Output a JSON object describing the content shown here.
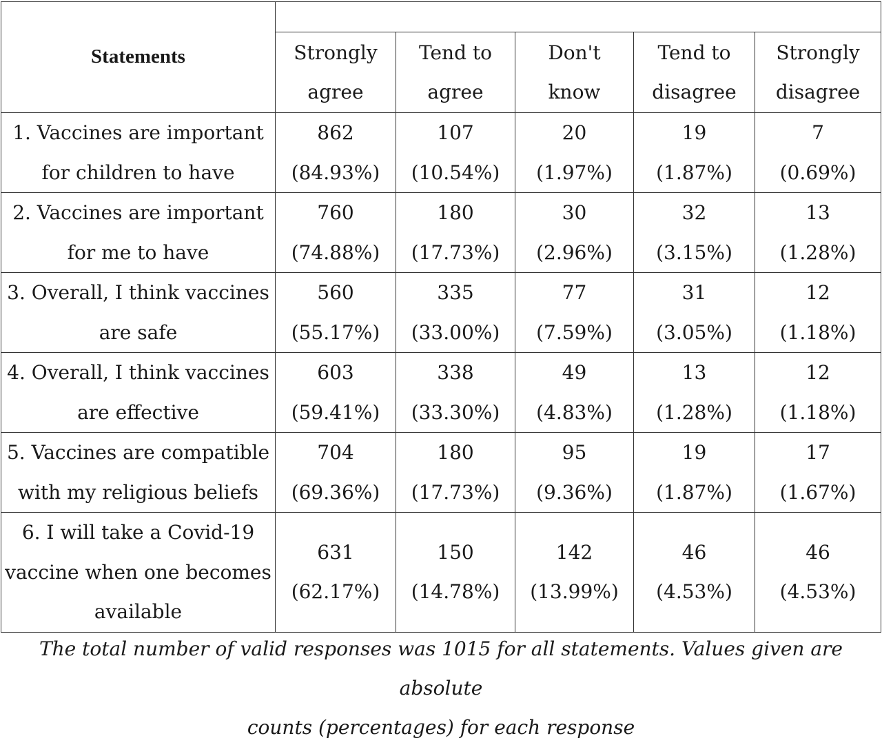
{
  "table": {
    "header": {
      "statements_label": "Statements",
      "columns": [
        {
          "line1": "Strongly",
          "line2": "agree"
        },
        {
          "line1": "Tend to",
          "line2": "agree"
        },
        {
          "line1": "Don't",
          "line2": "know"
        },
        {
          "line1": "Tend to",
          "line2": "disagree"
        },
        {
          "line1": "Strongly",
          "line2": "disagree"
        }
      ]
    },
    "rows": [
      {
        "statement": [
          "1. Vaccines are important",
          "for children to have"
        ],
        "cells": [
          {
            "count": "862",
            "pct": "(84.93%)"
          },
          {
            "count": "107",
            "pct": "(10.54%)"
          },
          {
            "count": "20",
            "pct": "(1.97%)"
          },
          {
            "count": "19",
            "pct": "(1.87%)"
          },
          {
            "count": "7",
            "pct": "(0.69%)"
          }
        ]
      },
      {
        "statement": [
          "2. Vaccines are important",
          "for me to have"
        ],
        "cells": [
          {
            "count": "760",
            "pct": "(74.88%)"
          },
          {
            "count": "180",
            "pct": "(17.73%)"
          },
          {
            "count": "30",
            "pct": "(2.96%)"
          },
          {
            "count": "32",
            "pct": "(3.15%)"
          },
          {
            "count": "13",
            "pct": "(1.28%)"
          }
        ]
      },
      {
        "statement": [
          "3. Overall, I think vaccines",
          "are safe"
        ],
        "cells": [
          {
            "count": "560",
            "pct": "(55.17%)"
          },
          {
            "count": "335",
            "pct": "(33.00%)"
          },
          {
            "count": "77",
            "pct": "(7.59%)"
          },
          {
            "count": "31",
            "pct": "(3.05%)"
          },
          {
            "count": "12",
            "pct": "(1.18%)"
          }
        ]
      },
      {
        "statement": [
          "4. Overall, I think vaccines",
          "are effective"
        ],
        "cells": [
          {
            "count": "603",
            "pct": "(59.41%)"
          },
          {
            "count": "338",
            "pct": "(33.30%)"
          },
          {
            "count": "49",
            "pct": "(4.83%)"
          },
          {
            "count": "13",
            "pct": "(1.28%)"
          },
          {
            "count": "12",
            "pct": "(1.18%)"
          }
        ]
      },
      {
        "statement": [
          "5. Vaccines are compatible",
          "with my religious beliefs"
        ],
        "cells": [
          {
            "count": "704",
            "pct": "(69.36%)"
          },
          {
            "count": "180",
            "pct": "(17.73%)"
          },
          {
            "count": "95",
            "pct": "(9.36%)"
          },
          {
            "count": "19",
            "pct": "(1.87%)"
          },
          {
            "count": "17",
            "pct": "(1.67%)"
          }
        ]
      },
      {
        "statement": [
          "6. I will take a Covid-19",
          "vaccine when one becomes",
          "available"
        ],
        "cells": [
          {
            "count": "631",
            "pct": "(62.17%)"
          },
          {
            "count": "150",
            "pct": "(14.78%)"
          },
          {
            "count": "142",
            "pct": "(13.99%)"
          },
          {
            "count": "46",
            "pct": "(4.53%)"
          },
          {
            "count": "46",
            "pct": "(4.53%)"
          }
        ]
      }
    ]
  },
  "note": {
    "line1": "The total number of valid responses was 1015 for all statements. Values given are absolute",
    "line2": "counts (percentages) for each response"
  }
}
